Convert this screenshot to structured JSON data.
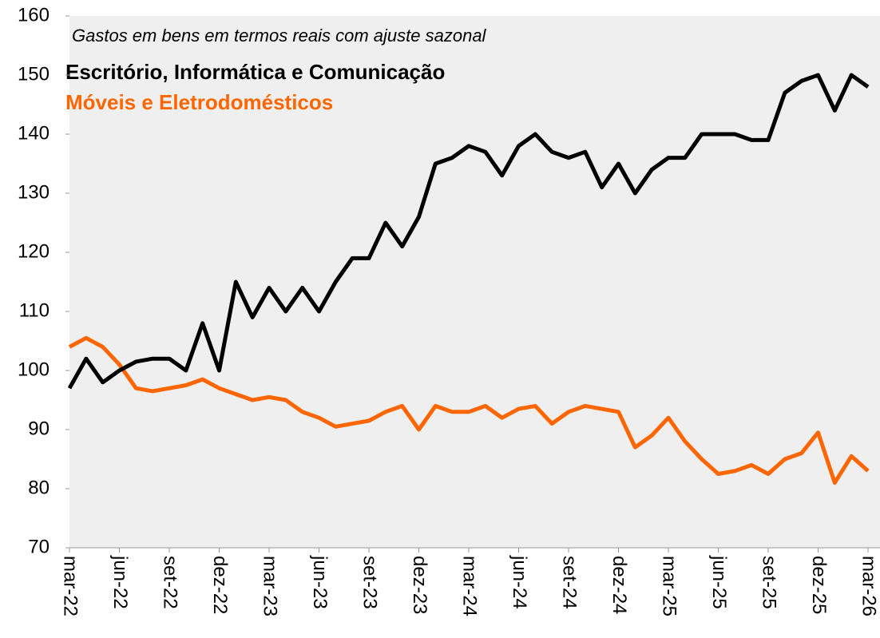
{
  "chart_data": {
    "type": "line",
    "subtitle": "Gastos em bens em termos reais com ajuste sazonal",
    "categories": [
      "mar-22",
      null,
      null,
      "jun-22",
      null,
      null,
      "set-22",
      null,
      null,
      "dez-22",
      null,
      null,
      "mar-23",
      null,
      null,
      "jun-23",
      null,
      null,
      "set-23",
      null,
      null,
      "dez-23",
      null,
      null,
      "mar-24",
      null,
      null,
      "jun-24",
      null,
      null,
      "set-24",
      null,
      null,
      "dez-24",
      null,
      null,
      "mar-25",
      null,
      null,
      "jun-25",
      null,
      null,
      "set-25",
      null,
      null,
      "dez-25",
      null,
      null,
      "mar-26"
    ],
    "series": [
      {
        "name": "Escritório, Informática e Comunicação",
        "color": "#000000",
        "values": [
          97,
          102,
          98,
          100,
          101.5,
          102,
          102,
          100,
          108,
          100,
          115,
          109,
          114,
          110,
          114,
          110,
          115,
          119,
          119,
          125,
          121,
          126,
          135,
          136,
          138,
          137,
          133,
          138,
          140,
          137,
          136,
          137,
          131,
          135,
          130,
          134,
          136,
          136,
          140,
          140,
          140,
          139,
          139,
          147,
          149,
          150,
          144,
          150,
          148
        ]
      },
      {
        "name": "Móveis e Eletrodomésticos",
        "color": "#ff6600",
        "values": [
          104,
          105.5,
          104,
          101,
          97,
          96.5,
          97,
          97.5,
          98.5,
          97,
          96,
          95,
          95.5,
          95,
          93,
          92,
          90.5,
          91,
          91.5,
          93,
          94,
          90,
          94,
          93,
          93,
          94,
          92,
          93.5,
          94,
          91,
          93,
          94,
          93.5,
          93,
          87,
          89,
          92,
          88,
          85,
          82.5,
          83,
          84,
          82.5,
          85,
          86,
          89.5,
          81,
          85.5,
          83
        ]
      }
    ],
    "ylim": [
      70,
      160
    ],
    "yticks": [
      70,
      80,
      90,
      100,
      110,
      120,
      130,
      140,
      150,
      160
    ]
  }
}
